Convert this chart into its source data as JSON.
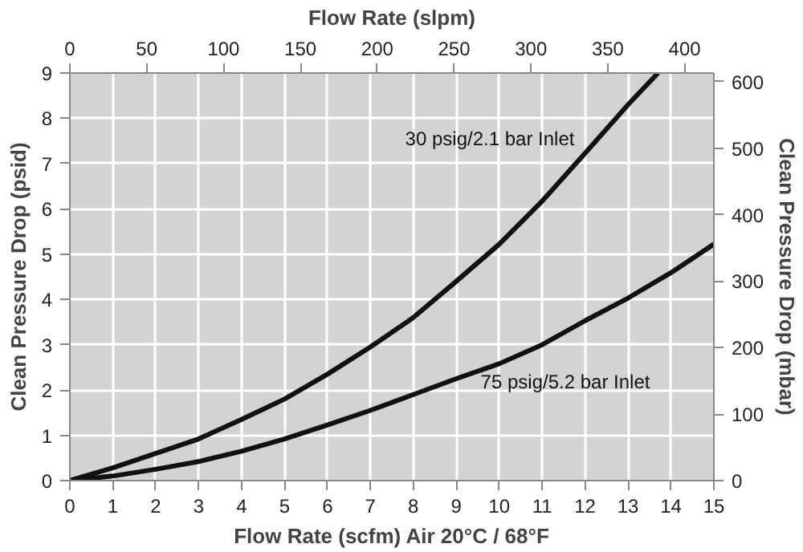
{
  "chart_data": {
    "type": "line",
    "xlabel": "Flow Rate (scfm) Air 20°C / 68°F",
    "ylabel": "Clean Pressure Drop (psid)",
    "y2label": "Clean Pressure Drop (mbar)",
    "x2label": "Flow Rate (slpm)",
    "x": [
      0,
      1,
      2,
      3,
      4,
      5,
      6,
      7,
      8,
      9,
      10,
      11,
      12,
      13,
      13.7
    ],
    "series": [
      {
        "name": "30 psig/2.1 bar Inlet",
        "color": "#111111",
        "values": [
          0,
          0.28,
          0.6,
          0.92,
          1.35,
          1.8,
          2.35,
          2.95,
          3.6,
          4.4,
          5.22,
          6.17,
          7.23,
          8.3,
          9
        ]
      },
      {
        "name": "75 psig/5.2 bar Inlet",
        "color": "#111111",
        "x": [
          0,
          1,
          2,
          3,
          4,
          5,
          6,
          7,
          8,
          9,
          10,
          11,
          12,
          13,
          14,
          15
        ],
        "values": [
          0,
          0.1,
          0.25,
          0.42,
          0.65,
          0.92,
          1.23,
          1.55,
          1.9,
          2.25,
          2.58,
          3.0,
          3.53,
          4.03,
          4.59,
          5.22
        ]
      }
    ],
    "xlim": [
      0,
      15
    ],
    "xticks": [
      0,
      1,
      2,
      3,
      4,
      5,
      6,
      7,
      8,
      9,
      10,
      11,
      12,
      13,
      14,
      15
    ],
    "ylim": [
      0,
      9
    ],
    "yticks": [
      0,
      1,
      2,
      3,
      4,
      5,
      6,
      7,
      8,
      9
    ],
    "y2lim": [
      0,
      613
    ],
    "y2ticks": [
      0,
      100,
      200,
      300,
      400,
      500,
      600
    ],
    "x2lim": [
      0,
      419
    ],
    "x2ticks": [
      0,
      50,
      100,
      150,
      200,
      250,
      300,
      350,
      400
    ],
    "grid": true,
    "marker": "none",
    "line_style": "solid"
  }
}
